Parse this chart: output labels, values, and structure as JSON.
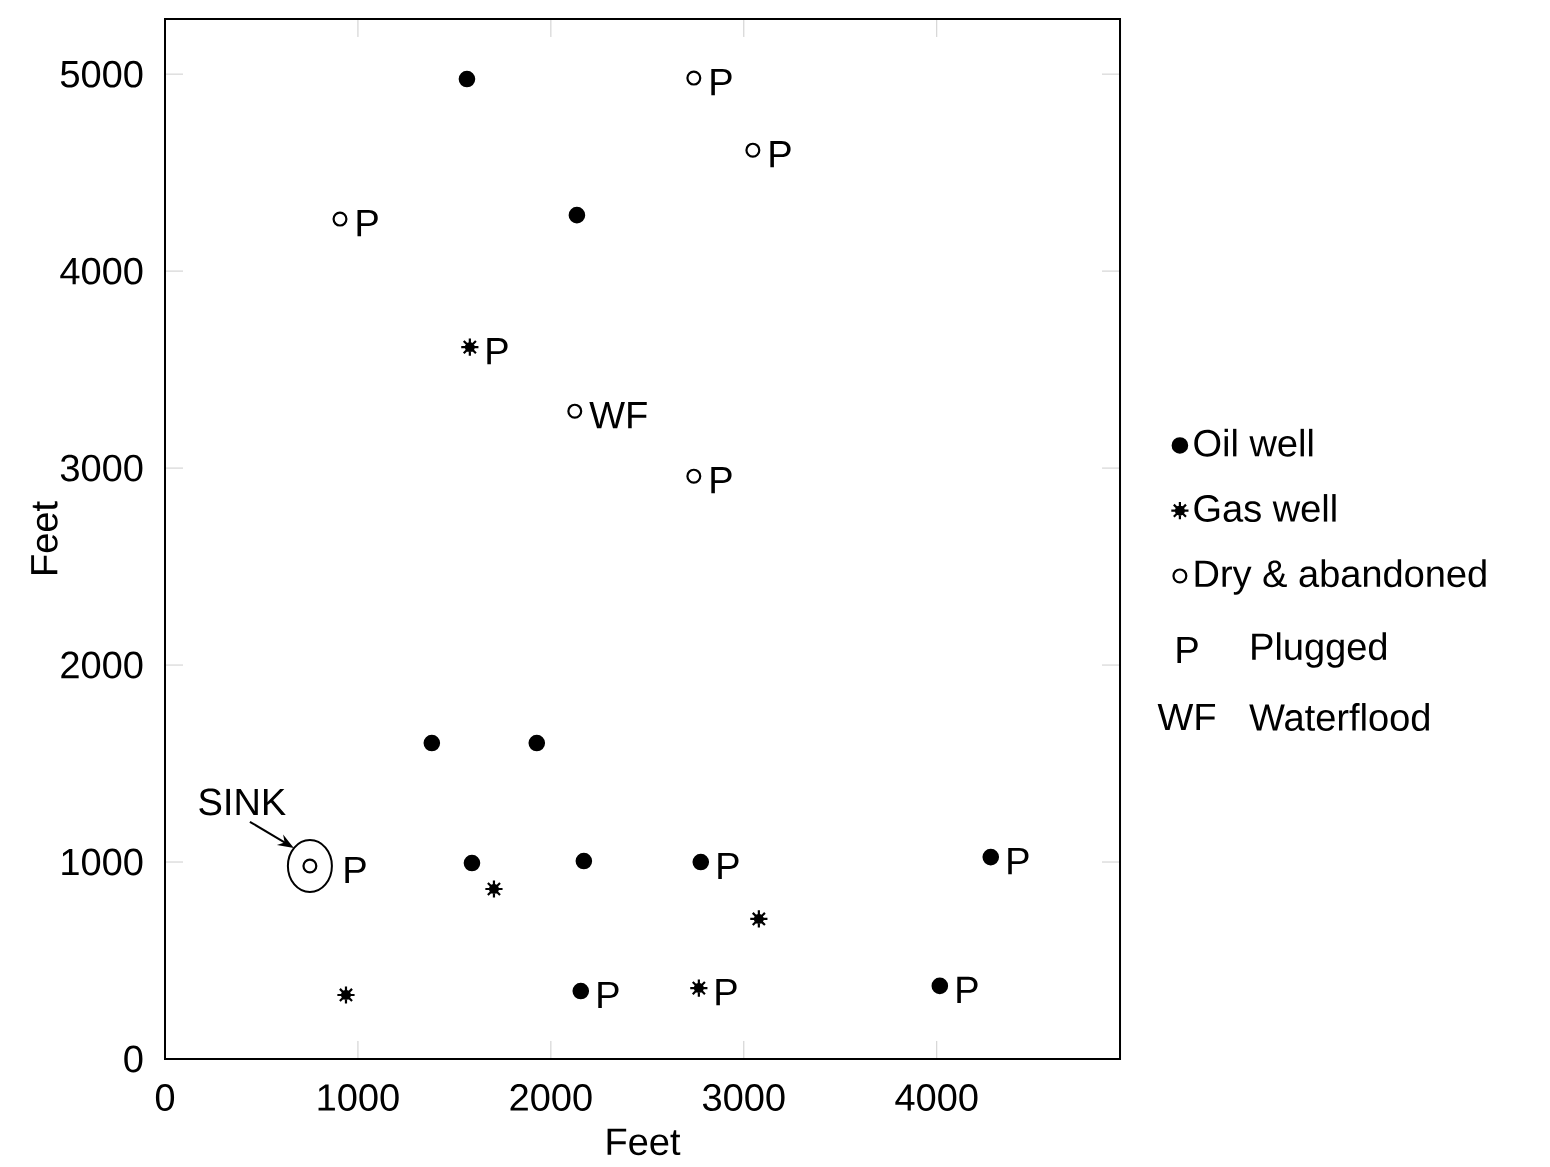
{
  "chart_data": {
    "type": "scatter",
    "xlabel": "Feet",
    "ylabel": "Feet",
    "xlim": [
      0,
      4950
    ],
    "ylim": [
      0,
      5280
    ],
    "xticks": [
      0,
      1000,
      2000,
      3000,
      4000
    ],
    "yticks": [
      0,
      1000,
      2000,
      3000,
      4000,
      5000
    ],
    "legend": "right",
    "series": [
      {
        "name": "Oil well",
        "color": "#000000",
        "marker": "circle",
        "x": [
          1565,
          2135,
          1383,
          1927,
          1591,
          2171,
          2777,
          4280,
          2155,
          4016
        ],
        "values": [
          4975,
          4284,
          1604,
          1604,
          995,
          1005,
          1000,
          1025,
          345,
          371
        ]
      },
      {
        "name": "Gas well",
        "color": "#000000",
        "marker": "cross",
        "x": [
          1580,
          1705,
          3078,
          938,
          2767
        ],
        "values": [
          3614,
          863,
          711,
          325,
          360
        ]
      },
      {
        "name": "Dry & abandoned",
        "color": "#ffffff",
        "marker": "circle",
        "x": [
          2741,
          3047,
          907,
          2124,
          2741,
          751
        ],
        "values": [
          4980,
          4614,
          4264,
          3289,
          2959,
          980
        ]
      }
    ],
    "annotations": [
      {
        "text": "SINK",
        "x": 751,
        "y": 980
      },
      {
        "text": "P",
        "x": 751,
        "y": 980
      },
      {
        "text": "P",
        "x": 2741,
        "y": 4980
      },
      {
        "text": "P",
        "x": 3047,
        "y": 4614
      },
      {
        "text": "P",
        "x": 907,
        "y": 4264
      },
      {
        "text": "P",
        "x": 1580,
        "y": 3614
      },
      {
        "text": "WF",
        "x": 2124,
        "y": 3289
      },
      {
        "text": "P",
        "x": 2741,
        "y": 2959
      },
      {
        "text": "P",
        "x": 2777,
        "y": 1000
      },
      {
        "text": "P",
        "x": 4280,
        "y": 1025
      },
      {
        "text": "P",
        "x": 2155,
        "y": 345
      },
      {
        "text": "P",
        "x": 2767,
        "y": 360
      },
      {
        "text": "P",
        "x": 4016,
        "y": 371
      },
      "P",
      "Plugged",
      "WF",
      "Waterflood"
    ]
  }
}
